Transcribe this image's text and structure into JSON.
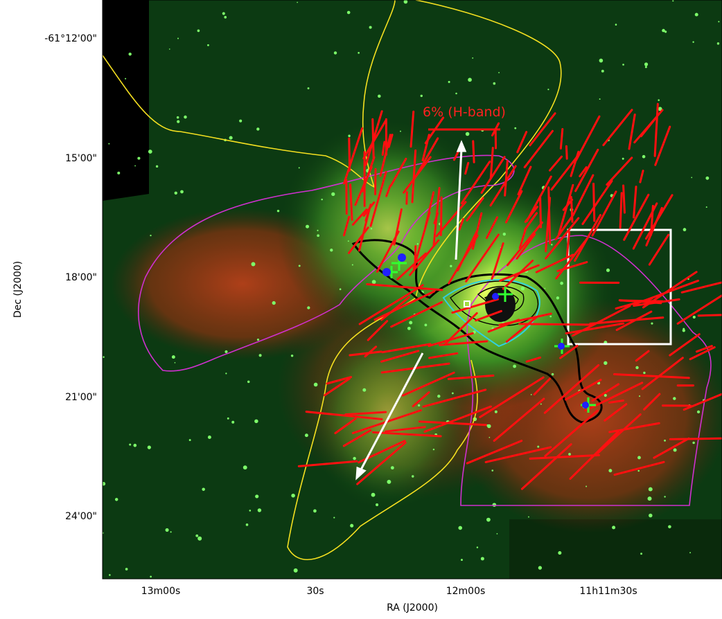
{
  "axes": {
    "x_label": "RA (J2000)",
    "y_label": "Dec (J2000)",
    "x_ticks": [
      "13m00s",
      "30s",
      "12m00s",
      "11h11m30s"
    ],
    "y_ticks": [
      "-61°12'00\"",
      "15'00\"",
      "18'00\"",
      "21'00\"",
      "24'00\""
    ]
  },
  "annotations": {
    "scale_bar": "6% (H-band)"
  }
}
